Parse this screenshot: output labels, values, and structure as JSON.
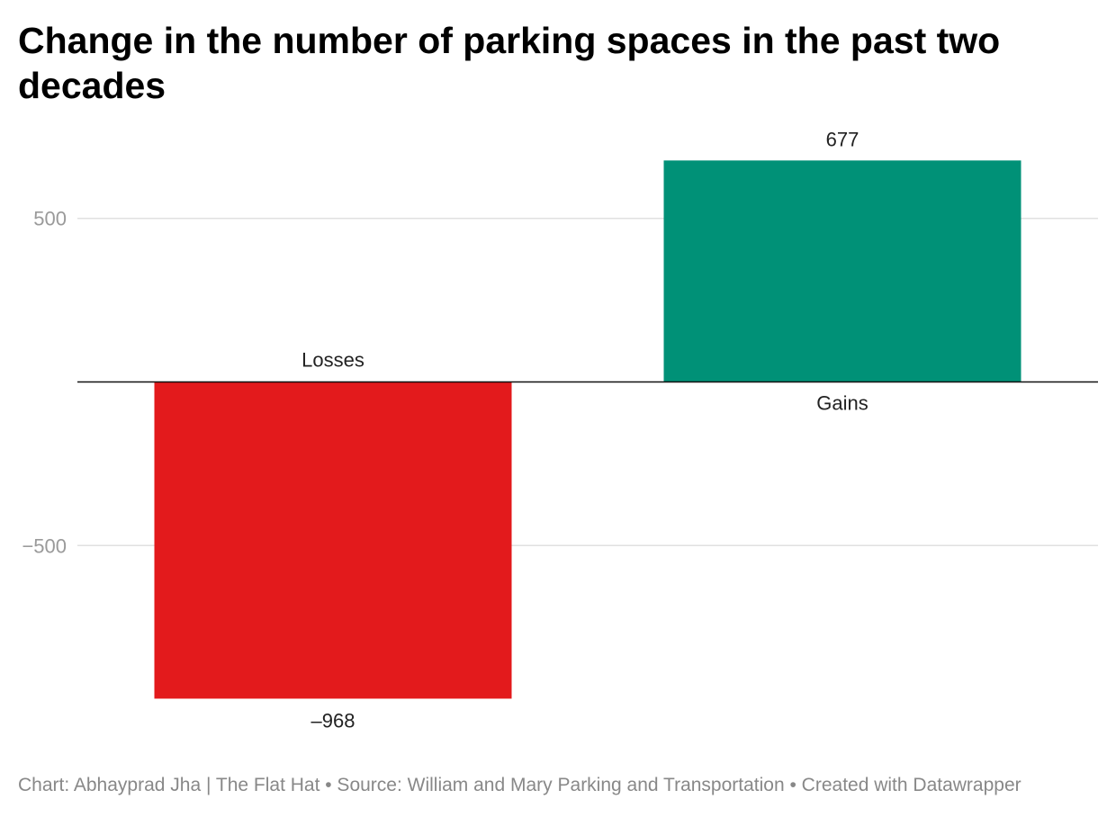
{
  "colors": {
    "losses": "#e31a1c",
    "gains": "#009177",
    "grid": "#e0e0e0",
    "tick": "#9a9a9a",
    "label": "#222222"
  },
  "chart_data": {
    "type": "bar",
    "title": "Change in the number of parking spaces in the past two decades",
    "categories": [
      "Losses",
      "Gains"
    ],
    "values": [
      -968,
      677
    ],
    "value_labels": [
      "–968",
      "677"
    ],
    "yticks": [
      500,
      -500
    ],
    "ytick_labels": [
      "500",
      "−500"
    ],
    "ylim": [
      -1100,
      800
    ],
    "xlabel": "",
    "ylabel": "",
    "grid": true
  },
  "footer": {
    "text": "Chart: Abhayprad Jha | The Flat Hat • Source: William and Mary Parking and Transportation • Created with Datawrapper"
  }
}
